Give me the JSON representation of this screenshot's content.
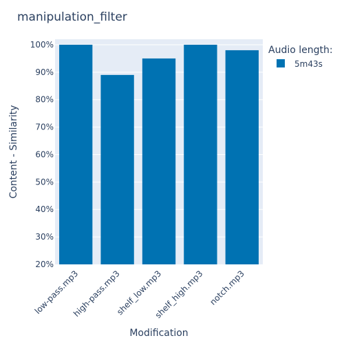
{
  "chart_data": {
    "type": "bar",
    "title": "manipulation_filter",
    "xlabel": "Modification",
    "ylabel": "Content - Similarity",
    "categories": [
      "low-pass.mp3",
      "high-pass.mp3",
      "shelf_low.mp3",
      "shelf_high.mp3",
      "notch.mp3"
    ],
    "series": [
      {
        "name": "5m43s",
        "values": [
          100,
          89,
          95,
          100,
          98
        ]
      }
    ],
    "ylim": [
      20,
      102
    ],
    "yticks": [
      20,
      30,
      40,
      50,
      60,
      70,
      80,
      90,
      100
    ],
    "ytick_labels": [
      "20%",
      "30%",
      "40%",
      "50%",
      "60%",
      "70%",
      "80%",
      "90%",
      "100%"
    ],
    "legend": {
      "title": "Audio length:",
      "placement": "right"
    },
    "grid": true,
    "colors": {
      "plot_bg": "#e5ecf6",
      "bar": "#0072b2",
      "text": "#2a3f5f",
      "grid": "#ffffff"
    }
  }
}
